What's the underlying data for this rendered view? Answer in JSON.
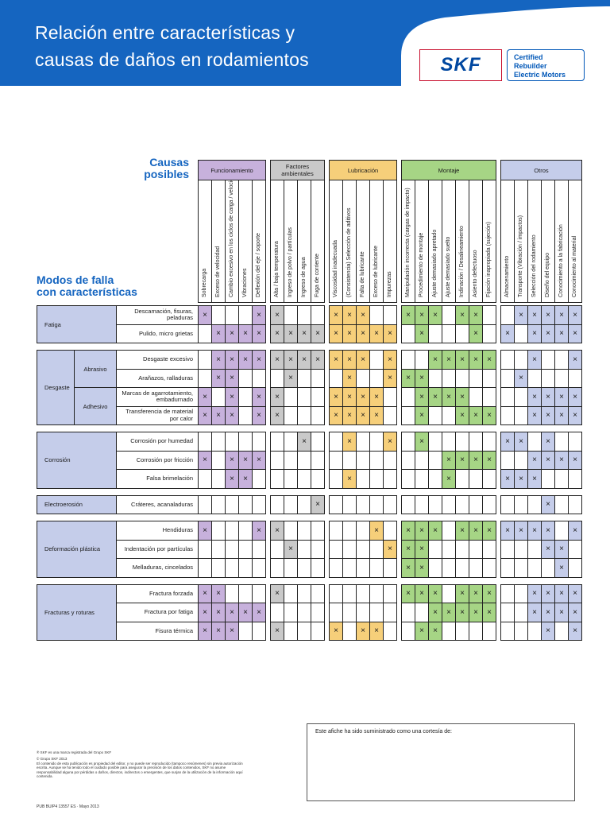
{
  "header": {
    "title_line1": "Relación entre características y",
    "title_line2": "causas de daños en rodamientos",
    "logo_text": "SKF",
    "cert_line1": "Certified Rebuilder",
    "cert_line2": "Electric Motors",
    "bg_color": "#1565c0"
  },
  "causas_line1": "Causas",
  "causas_line2": "posibles",
  "modos_line1": "Modos de falla",
  "modos_line2": "con características",
  "groups": [
    {
      "label": "Funcionamiento",
      "color": "#c7b1dc",
      "cols": [
        "Sobrecarga",
        "Exceso de velocidad",
        "Cambio excesivo en los ciclos de carga / velocidad",
        "Vibraciones",
        "Deflexión del eje / soporte"
      ]
    },
    {
      "label": "Factores ambientales",
      "color": "#c9c9c9",
      "cols": [
        "Alta / baja temperatura",
        "Ingreso de polvo / partículas",
        "Ingreso de agua",
        "Fuga de corriente"
      ]
    },
    {
      "label": "Lubricación",
      "color": "#f6cf7a",
      "cols": [
        "Viscosidad inadecuada",
        "(Consistencia) Selección de aditivos",
        "Falta de lubricante",
        "Exceso de lubricante",
        "Impurezas"
      ]
    },
    {
      "label": "Montaje",
      "color": "#a6d585",
      "cols": [
        "Manipulación incorrecta (cargas de impacto)",
        "Procedimiento de montaje",
        "Ajuste demasiado apretado",
        "Ajuste demasiado suelto",
        "Indinación / Desalineamiento",
        "Asiento defectuoso",
        "Fijación inapropiada (sujeción)"
      ]
    },
    {
      "label": "Otros",
      "color": "#c5cdea",
      "cols": [
        "Almacenamiento",
        "Transporte (Vibración / impactos)",
        "Selección del rodamiento",
        "Diseño del equipo",
        "Conocimiento a la fabricación",
        "Conocimiento al material"
      ]
    }
  ],
  "sections": [
    {
      "name": "Fatiga",
      "rows": [
        {
          "label": "Descamación, fisuras, peladuras",
          "marks": [
            1,
            0,
            0,
            0,
            1,
            1,
            0,
            0,
            0,
            1,
            1,
            1,
            0,
            0,
            1,
            1,
            1,
            0,
            1,
            1,
            0,
            0,
            1,
            1,
            1,
            1,
            1
          ]
        },
        {
          "label": "Pulido, micro grietas",
          "marks": [
            0,
            1,
            1,
            1,
            1,
            1,
            1,
            1,
            1,
            1,
            1,
            1,
            1,
            1,
            0,
            1,
            0,
            0,
            0,
            1,
            0,
            1,
            0,
            1,
            1,
            1,
            1
          ]
        }
      ]
    },
    {
      "name": "Desgaste",
      "subs": [
        {
          "name": "Abrasivo",
          "rows": [
            {
              "label": "Desgaste excesivo",
              "marks": [
                0,
                1,
                1,
                1,
                1,
                1,
                1,
                1,
                1,
                1,
                1,
                1,
                0,
                1,
                0,
                0,
                1,
                1,
                1,
                1,
                1,
                0,
                0,
                1,
                0,
                0,
                1
              ]
            },
            {
              "label": "Arañazos, ralladuras",
              "marks": [
                0,
                1,
                1,
                0,
                0,
                0,
                1,
                0,
                0,
                0,
                1,
                0,
                0,
                1,
                1,
                1,
                0,
                0,
                0,
                0,
                0,
                0,
                1,
                0,
                0,
                0,
                0
              ]
            }
          ]
        },
        {
          "name": "Adhesivo",
          "rows": [
            {
              "label": "Marcas de agarrotamiento, embadurnado",
              "marks": [
                1,
                0,
                1,
                0,
                1,
                1,
                0,
                0,
                0,
                1,
                1,
                1,
                1,
                0,
                0,
                1,
                1,
                1,
                1,
                0,
                0,
                0,
                0,
                1,
                1,
                1,
                1
              ]
            },
            {
              "label": "Transferencia de material por calor",
              "marks": [
                1,
                1,
                1,
                0,
                1,
                1,
                0,
                0,
                0,
                1,
                1,
                1,
                1,
                0,
                0,
                1,
                0,
                0,
                1,
                1,
                1,
                0,
                0,
                1,
                1,
                1,
                1
              ]
            }
          ]
        }
      ]
    },
    {
      "name": "Corrosión",
      "rows": [
        {
          "label": "Corrosión por humedad",
          "marks": [
            0,
            0,
            0,
            0,
            0,
            0,
            0,
            1,
            0,
            0,
            1,
            0,
            0,
            1,
            0,
            1,
            0,
            0,
            0,
            0,
            0,
            1,
            1,
            0,
            1,
            0,
            0
          ]
        },
        {
          "label": "Corrosión por fricción",
          "marks": [
            1,
            0,
            1,
            1,
            1,
            0,
            0,
            0,
            0,
            0,
            0,
            0,
            0,
            0,
            0,
            0,
            0,
            1,
            1,
            1,
            1,
            0,
            0,
            1,
            1,
            1,
            1
          ]
        },
        {
          "label": "Falsa brimelación",
          "marks": [
            0,
            0,
            1,
            1,
            0,
            0,
            0,
            0,
            0,
            0,
            1,
            0,
            0,
            0,
            0,
            0,
            0,
            1,
            0,
            0,
            0,
            1,
            1,
            1,
            0,
            0,
            0
          ]
        }
      ]
    },
    {
      "name": "Electroerosión",
      "rows": [
        {
          "label": "Cráteres, acanaladuras",
          "marks": [
            0,
            0,
            0,
            0,
            0,
            0,
            0,
            0,
            1,
            0,
            0,
            0,
            0,
            0,
            0,
            0,
            0,
            0,
            0,
            0,
            0,
            0,
            0,
            0,
            1,
            0,
            0
          ]
        }
      ]
    },
    {
      "name": "Deformación plástica",
      "rows": [
        {
          "label": "Hendiduras",
          "marks": [
            1,
            0,
            0,
            0,
            1,
            1,
            0,
            0,
            0,
            0,
            0,
            0,
            1,
            0,
            1,
            1,
            1,
            0,
            1,
            1,
            1,
            1,
            1,
            1,
            1,
            0,
            1
          ]
        },
        {
          "label": "Indentación por partículas",
          "marks": [
            0,
            0,
            0,
            0,
            0,
            0,
            1,
            0,
            0,
            0,
            0,
            0,
            0,
            1,
            1,
            1,
            0,
            0,
            0,
            0,
            0,
            0,
            0,
            0,
            1,
            1,
            0
          ]
        },
        {
          "label": "Melladuras, cincelados",
          "marks": [
            0,
            0,
            0,
            0,
            0,
            0,
            0,
            0,
            0,
            0,
            0,
            0,
            0,
            0,
            1,
            1,
            0,
            0,
            0,
            0,
            0,
            0,
            0,
            0,
            0,
            1,
            0
          ]
        }
      ]
    },
    {
      "name": "Fracturas y roturas",
      "rows": [
        {
          "label": "Fractura forzada",
          "marks": [
            1,
            1,
            0,
            0,
            0,
            1,
            0,
            0,
            0,
            0,
            0,
            0,
            0,
            0,
            1,
            1,
            1,
            0,
            1,
            1,
            1,
            0,
            0,
            1,
            1,
            1,
            1
          ]
        },
        {
          "label": "Fractura por fatiga",
          "marks": [
            1,
            1,
            1,
            1,
            1,
            0,
            0,
            0,
            0,
            0,
            0,
            0,
            0,
            0,
            0,
            0,
            1,
            1,
            1,
            1,
            1,
            0,
            0,
            1,
            1,
            1,
            1
          ]
        },
        {
          "label": "Fisura térmica",
          "marks": [
            1,
            1,
            1,
            0,
            0,
            1,
            0,
            0,
            0,
            1,
            0,
            1,
            1,
            0,
            0,
            1,
            1,
            0,
            0,
            0,
            0,
            0,
            0,
            0,
            1,
            0,
            1
          ]
        }
      ]
    }
  ],
  "mark_symbol": "×",
  "footer": {
    "trademark": "® SKF es una marca registrada del Grupo SKF",
    "copyright": "© Grupo SKF 2013",
    "disclaimer": "El contenido de esta publicación es propiedad del editor, y no puede ser reproducido (tampoco resúmenes) sin previa autorización escrita. Aunque se ha tenido todo el cuidado posible para asegurar la precisión de los datos contenidos, SKF no asume responsabilidad alguna por pérdidas o daños, directos, indirectos o emergentes, que surjan de la utilización de la información aquí contenida.",
    "pub_number": "PUB BU/P4 13557 ES · Mayo 2013",
    "courtesy": "Este afiche ha sido suministrado como una cortesía de:"
  }
}
